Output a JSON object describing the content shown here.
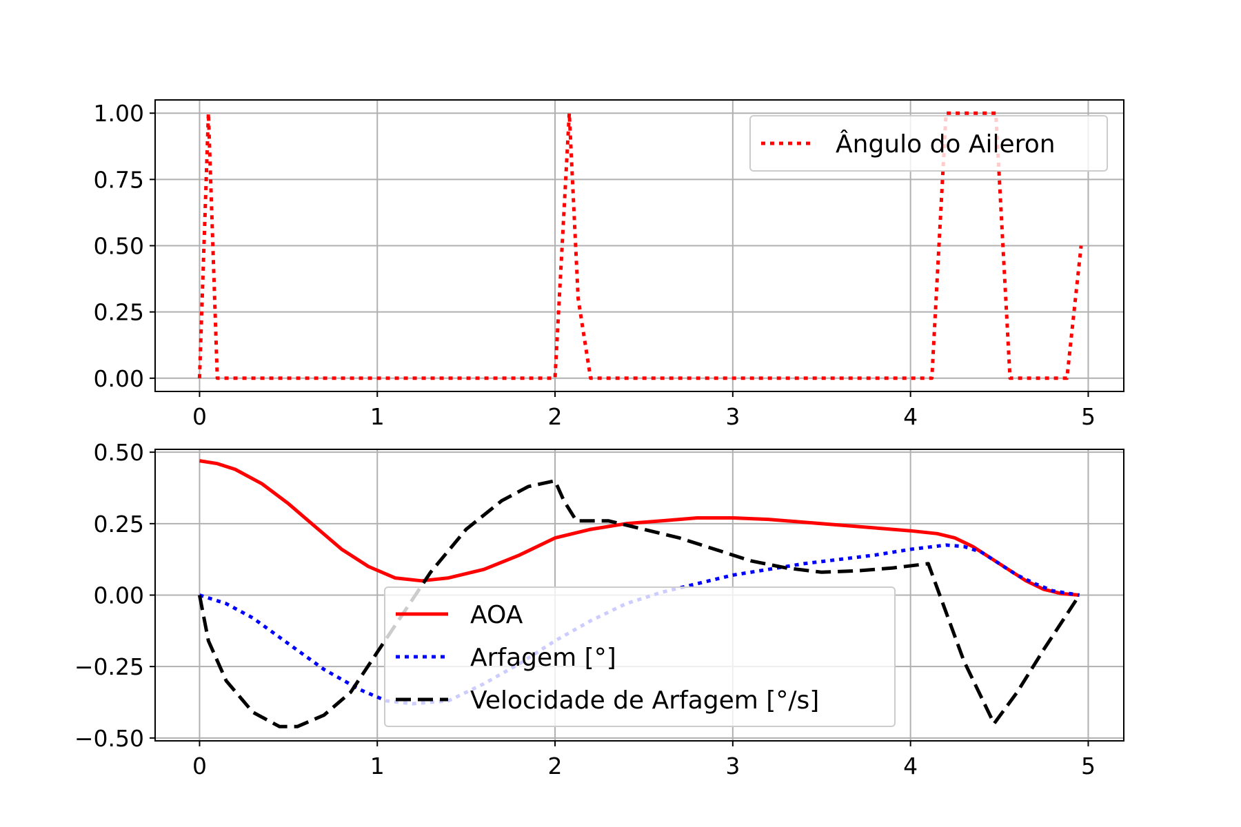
{
  "chart_data": [
    {
      "type": "line",
      "title": "",
      "xlabel": "",
      "ylabel": "",
      "xlim": [
        -0.25,
        5.2
      ],
      "ylim": [
        -0.05,
        1.05
      ],
      "xticks": [
        0,
        1,
        2,
        3,
        4,
        5
      ],
      "xtick_labels": [
        "0",
        "1",
        "2",
        "3",
        "4",
        "5"
      ],
      "yticks": [
        0,
        0.25,
        0.5,
        0.75,
        1.0
      ],
      "ytick_labels": [
        "0.00",
        "0.25",
        "0.50",
        "0.75",
        "1.00"
      ],
      "grid": true,
      "legend_position": "top-right",
      "series": [
        {
          "name": "Ângulo do Aileron",
          "color": "#ff0000",
          "style": "dotted",
          "x": [
            0,
            0.05,
            0.1,
            0.14,
            2.0,
            2.08,
            2.13,
            2.2,
            4.12,
            4.2,
            4.48,
            4.56,
            4.88,
            4.96
          ],
          "y": [
            0,
            1.0,
            0.0,
            0.0,
            0.0,
            1.0,
            0.3,
            0.0,
            0.0,
            1.0,
            1.0,
            0.0,
            0.0,
            0.5
          ]
        }
      ]
    },
    {
      "type": "line",
      "title": "",
      "xlabel": "",
      "ylabel": "",
      "xlim": [
        -0.25,
        5.2
      ],
      "ylim": [
        -0.51,
        0.51
      ],
      "xticks": [
        0,
        1,
        2,
        3,
        4,
        5
      ],
      "xtick_labels": [
        "0",
        "1",
        "2",
        "3",
        "4",
        "5"
      ],
      "yticks": [
        -0.5,
        -0.25,
        0,
        0.25,
        0.5
      ],
      "ytick_labels": [
        "−0.50",
        "−0.25",
        "0.00",
        "0.25",
        "0.50"
      ],
      "grid": true,
      "legend_position": "lower-center",
      "series": [
        {
          "name": "AOA",
          "color": "#ff0000",
          "style": "solid",
          "x": [
            0,
            0.1,
            0.2,
            0.35,
            0.5,
            0.65,
            0.8,
            0.95,
            1.1,
            1.25,
            1.4,
            1.6,
            1.8,
            2.0,
            2.2,
            2.4,
            2.6,
            2.8,
            3.0,
            3.2,
            3.4,
            3.6,
            3.8,
            4.0,
            4.15,
            4.25,
            4.35,
            4.45,
            4.55,
            4.65,
            4.75,
            4.85,
            4.95
          ],
          "y": [
            0.47,
            0.46,
            0.44,
            0.39,
            0.32,
            0.24,
            0.16,
            0.1,
            0.06,
            0.05,
            0.06,
            0.09,
            0.14,
            0.2,
            0.23,
            0.25,
            0.26,
            0.27,
            0.27,
            0.265,
            0.255,
            0.245,
            0.235,
            0.225,
            0.215,
            0.2,
            0.17,
            0.13,
            0.09,
            0.05,
            0.02,
            0.005,
            0.0
          ]
        },
        {
          "name": "Arfagem [°]",
          "color": "#0000ff",
          "style": "dotted",
          "x": [
            0,
            0.15,
            0.3,
            0.5,
            0.7,
            0.9,
            1.05,
            1.2,
            1.4,
            1.6,
            1.8,
            2.0,
            2.2,
            2.4,
            2.6,
            2.8,
            3.0,
            3.2,
            3.4,
            3.6,
            3.8,
            4.0,
            4.2,
            4.3,
            4.4,
            4.5,
            4.6,
            4.7,
            4.8,
            4.95
          ],
          "y": [
            0.0,
            -0.03,
            -0.08,
            -0.17,
            -0.26,
            -0.33,
            -0.37,
            -0.38,
            -0.37,
            -0.31,
            -0.24,
            -0.16,
            -0.09,
            -0.03,
            0.01,
            0.04,
            0.07,
            0.09,
            0.11,
            0.125,
            0.14,
            0.16,
            0.175,
            0.17,
            0.15,
            0.11,
            0.07,
            0.04,
            0.015,
            0.0
          ]
        },
        {
          "name": "Velocidade de Arfagem [°/s]",
          "color": "#000000",
          "style": "dashed",
          "x": [
            0,
            0.05,
            0.15,
            0.3,
            0.45,
            0.55,
            0.7,
            0.85,
            1.0,
            1.15,
            1.3,
            1.5,
            1.7,
            1.85,
            2.0,
            2.05,
            2.12,
            2.3,
            2.5,
            2.7,
            2.9,
            3.1,
            3.3,
            3.5,
            3.7,
            3.9,
            4.1,
            4.3,
            4.47,
            4.6,
            4.75,
            4.95
          ],
          "y": [
            0.0,
            -0.16,
            -0.3,
            -0.41,
            -0.46,
            -0.46,
            -0.42,
            -0.34,
            -0.2,
            -0.06,
            0.08,
            0.23,
            0.33,
            0.38,
            0.4,
            0.33,
            0.26,
            0.26,
            0.23,
            0.2,
            0.16,
            0.12,
            0.095,
            0.08,
            0.085,
            0.095,
            0.11,
            -0.23,
            -0.45,
            -0.34,
            -0.19,
            0.0
          ]
        }
      ]
    }
  ]
}
